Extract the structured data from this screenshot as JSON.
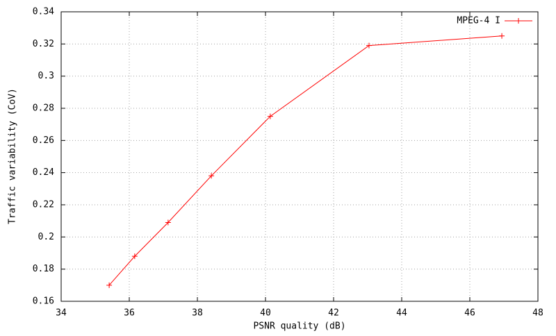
{
  "chart_data": {
    "type": "line",
    "x_label": "PSNR quality (dB)",
    "y_label": "Traffic variability (CoV)",
    "x": [
      35.41,
      36.16,
      37.14,
      38.41,
      40.14,
      43.04,
      46.94
    ],
    "series": [
      {
        "name": "MPEG-4 I",
        "color": "#ff0000",
        "values": [
          0.17,
          0.188,
          0.209,
          0.238,
          0.275,
          0.319,
          0.325
        ]
      }
    ],
    "xlim": [
      34,
      48
    ],
    "xticks": [
      34,
      36,
      38,
      40,
      42,
      44,
      46,
      48
    ],
    "ylim": [
      0.16,
      0.34
    ],
    "yticks": [
      0.16,
      0.18,
      0.2,
      0.22,
      0.24,
      0.26,
      0.28,
      0.3,
      0.32,
      0.34
    ],
    "grid": true,
    "legend": "top-right"
  }
}
